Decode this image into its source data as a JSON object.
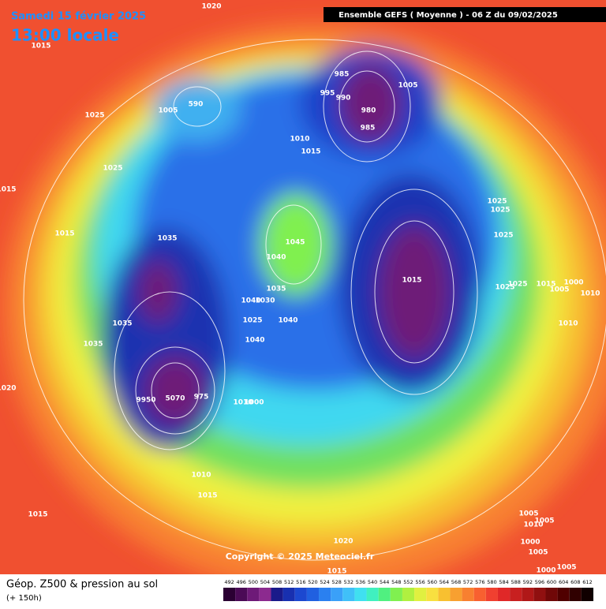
{
  "header": {
    "date": "Samedi 15 février 2025",
    "time": "13:00 locale",
    "run": "Ensemble GEFS  ( Moyenne )  -  06 Z du 09/02/2025"
  },
  "isobar_labels": [
    "1020",
    "1015",
    "1025",
    "1025",
    "1015",
    "1015",
    "1035",
    "1035",
    "1035",
    "1020",
    "9950",
    "5070",
    "975",
    "1010",
    "1000",
    "1010",
    "1015",
    "1015",
    "1020",
    "1015",
    "1045",
    "1040",
    "1035",
    "1040",
    "1030",
    "1025",
    "1040",
    "1040",
    "1005",
    "590",
    "985",
    "995",
    "990",
    "1005",
    "980",
    "985",
    "1010",
    "1015",
    "1025",
    "1025",
    "1025",
    "1015",
    "1025",
    "1025",
    "1015",
    "1005",
    "1000",
    "1010",
    "1010",
    "1005",
    "1010",
    "1005",
    "1000",
    "1005",
    "1000",
    "1005"
  ],
  "footer": {
    "title": "Géop. Z500 & pression au sol",
    "lead": "(+ 150h)",
    "copyright": "Copyright © 2025 Meteociel.fr"
  },
  "colorbar": {
    "values": [
      492,
      496,
      500,
      504,
      508,
      512,
      516,
      520,
      524,
      528,
      532,
      536,
      540,
      544,
      548,
      552,
      556,
      560,
      564,
      568,
      572,
      576,
      580,
      584,
      588,
      592,
      596,
      600,
      604,
      608,
      612
    ],
    "colors": [
      "#2b0033",
      "#4b0a56",
      "#6e1a78",
      "#8c2a8f",
      "#1a1a8a",
      "#1830b0",
      "#1c48d0",
      "#2060e0",
      "#2a80f0",
      "#3aa0f8",
      "#40c0f8",
      "#40e0f0",
      "#40f0c0",
      "#50f080",
      "#80f050",
      "#b0f040",
      "#e0f040",
      "#f8e040",
      "#f8c030",
      "#f8a030",
      "#f88030",
      "#f86030",
      "#f04030",
      "#e02828",
      "#c82020",
      "#b01818",
      "#901010",
      "#700808",
      "#500000",
      "#300000",
      "#100000"
    ]
  }
}
